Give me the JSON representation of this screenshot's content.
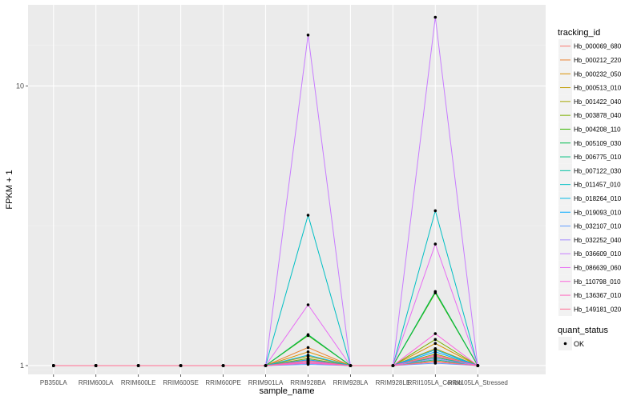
{
  "chart_data": {
    "type": "line",
    "xlabel": "sample_name",
    "ylabel": "FPKM + 1",
    "y_scale": "log10",
    "ylim": [
      0.93,
      19.5
    ],
    "y_ticks": [
      1,
      10
    ],
    "y_tick_labels": [
      "1",
      "10"
    ],
    "categories": [
      "PB350LA",
      "RRIM600LA",
      "RRIM600LE",
      "RRIM600SE",
      "RRIM600PE",
      "RRIM901LA",
      "RRIM928BA",
      "RRIM928LA",
      "RRIM928LE",
      "RRII105LA_Control",
      "RRII105LA_Stressed"
    ],
    "category_labels": [
      "PB350LA",
      "RRIM600LA",
      "RRIM600LE",
      "RRIM600SE",
      "RRIM600PE",
      "RRIM901LA",
      "RRIM928BA",
      "RRIM928LA",
      "RRIM928LE",
      "RRII105LA_Control",
      "RRII105LA_Stressed"
    ],
    "legend_title": "tracking_id",
    "legend_position": "right",
    "status_legend_title": "quant_status",
    "status_legend_label": "OK",
    "series": [
      {
        "name": "Hb_000069_680",
        "color": "#F8766D",
        "values": [
          1,
          1,
          1,
          1,
          1,
          1,
          1.05,
          1,
          1,
          1.08,
          1
        ]
      },
      {
        "name": "Hb_000212_220",
        "color": "#EA8331",
        "values": [
          1,
          1,
          1,
          1,
          1,
          1,
          1.16,
          1,
          1,
          1.04,
          1
        ]
      },
      {
        "name": "Hb_000232_050",
        "color": "#D89000",
        "values": [
          1,
          1,
          1,
          1,
          1,
          1,
          1.12,
          1,
          1,
          1.2,
          1
        ]
      },
      {
        "name": "Hb_000513_010",
        "color": "#C09B00",
        "values": [
          1,
          1,
          1,
          1,
          1,
          1,
          1.08,
          1,
          1,
          1.15,
          1
        ]
      },
      {
        "name": "Hb_001422_040",
        "color": "#A3A500",
        "values": [
          1,
          1,
          1,
          1,
          1,
          1,
          1.03,
          1,
          1,
          1.1,
          1
        ]
      },
      {
        "name": "Hb_003878_040",
        "color": "#7CAE00",
        "values": [
          1,
          1,
          1,
          1,
          1,
          1,
          1.06,
          1,
          1,
          1.24,
          1
        ]
      },
      {
        "name": "Hb_004208_110",
        "color": "#39B600",
        "values": [
          1,
          1,
          1,
          1,
          1,
          1,
          1.28,
          1,
          1,
          1.82,
          1
        ]
      },
      {
        "name": "Hb_005109_030",
        "color": "#00BB4E",
        "values": [
          1,
          1,
          1,
          1,
          1,
          1,
          1.29,
          1,
          1,
          1.84,
          1
        ]
      },
      {
        "name": "Hb_006775_010",
        "color": "#00BF7D",
        "values": [
          1,
          1,
          1,
          1,
          1,
          1,
          1.04,
          1,
          1,
          1.07,
          1
        ]
      },
      {
        "name": "Hb_007122_030",
        "color": "#00C1A3",
        "values": [
          1,
          1,
          1,
          1,
          1,
          1,
          1.02,
          1,
          1,
          1.05,
          1
        ]
      },
      {
        "name": "Hb_011457_010",
        "color": "#00BFC4",
        "values": [
          1,
          1,
          1,
          1,
          1,
          1,
          3.45,
          1,
          1,
          3.58,
          1
        ]
      },
      {
        "name": "Hb_018264_010",
        "color": "#00B8E5",
        "values": [
          1,
          1,
          1,
          1,
          1,
          1,
          1.09,
          1,
          1,
          1.14,
          1
        ]
      },
      {
        "name": "Hb_019093_010",
        "color": "#00A9FF",
        "values": [
          1,
          1,
          1,
          1,
          1,
          1,
          1.05,
          1,
          1,
          1.12,
          1
        ]
      },
      {
        "name": "Hb_032107_010",
        "color": "#619CFF",
        "values": [
          1,
          1,
          1,
          1,
          1,
          1,
          1.01,
          1,
          1,
          1.02,
          1
        ]
      },
      {
        "name": "Hb_032252_040",
        "color": "#A58AFF",
        "values": [
          1,
          1,
          1,
          1,
          1,
          1,
          1.02,
          1,
          1,
          1.06,
          1
        ]
      },
      {
        "name": "Hb_036609_010",
        "color": "#C77CFF",
        "values": [
          1,
          1,
          1,
          1,
          1,
          1,
          15.2,
          1,
          1,
          17.6,
          1
        ]
      },
      {
        "name": "Hb_086639_060",
        "color": "#E76BF3",
        "values": [
          1,
          1,
          1,
          1,
          1,
          1,
          1.65,
          1,
          1,
          2.72,
          1
        ]
      },
      {
        "name": "Hb_110798_010",
        "color": "#FA62DB",
        "values": [
          1,
          1,
          1,
          1,
          1,
          1,
          1.03,
          1,
          1,
          1.3,
          1
        ]
      },
      {
        "name": "Hb_136367_010",
        "color": "#FF62BC",
        "values": [
          1,
          1,
          1,
          1,
          1,
          1,
          1.02,
          1,
          1,
          1.09,
          1
        ]
      },
      {
        "name": "Hb_149181_020",
        "color": "#FF6C91",
        "values": [
          1,
          1,
          1,
          1,
          1,
          1,
          1.04,
          1,
          1,
          1.03,
          1
        ]
      }
    ]
  },
  "colors": {
    "panel_background": "#EBEBEB",
    "grid_major": "#FFFFFF",
    "grid_minor": "#F2F2F2",
    "point": "#000000",
    "text": "#4D4D4D",
    "title_text": "#000000"
  }
}
